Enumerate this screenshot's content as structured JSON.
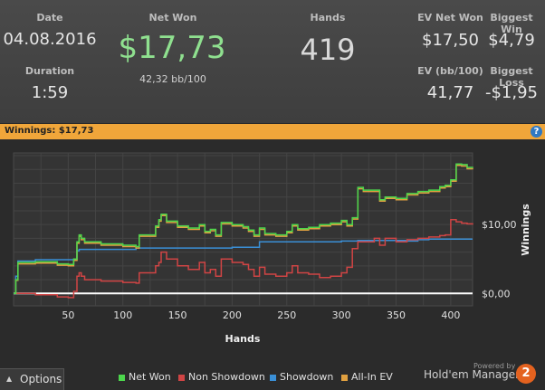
{
  "stats": {
    "date_label": "Date",
    "date_value": "04.08.2016",
    "duration_label": "Duration",
    "duration_value": "1:59",
    "netwon_label": "Net Won",
    "netwon_value": "$17,73",
    "netwon_sub": "42,32 bb/100",
    "hands_label": "Hands",
    "hands_value": "419",
    "evnet_label": "EV Net Won",
    "evnet_value": "$17,50",
    "evbb_label": "EV (bb/100)",
    "evbb_value": "41,77",
    "bigwin_label": "Biggest Win",
    "bigwin_value": "$4,79",
    "bigloss_label": "Biggest Loss",
    "bigloss_value": "-$1,95"
  },
  "banner": {
    "text": "Winnings: $17,73",
    "help_icon": "?"
  },
  "chart_data": {
    "type": "line",
    "xlabel": "Hands",
    "ylabel": "Winnings",
    "xlim": [
      0,
      420
    ],
    "ylim": [
      -1.8,
      20.4
    ],
    "x_ticks": [
      50,
      100,
      150,
      200,
      250,
      300,
      350,
      400
    ],
    "y_ticks": [
      {
        "value": 0,
        "label": "$0,00"
      },
      {
        "value": 10,
        "label": "$10,00"
      }
    ],
    "grid": true,
    "series": [
      {
        "name": "Net Won",
        "color": "#4cd64c",
        "x": [
          0,
          2,
          4,
          20,
          40,
          50,
          55,
          58,
          60,
          62,
          65,
          80,
          100,
          112,
          115,
          130,
          133,
          135,
          140,
          150,
          160,
          170,
          175,
          180,
          185,
          190,
          200,
          210,
          215,
          220,
          225,
          230,
          240,
          250,
          255,
          260,
          270,
          280,
          290,
          300,
          305,
          310,
          315,
          320,
          330,
          335,
          340,
          350,
          360,
          370,
          380,
          390,
          395,
          400,
          405,
          410,
          415,
          420
        ],
        "y": [
          0,
          2,
          4.5,
          4.6,
          4.3,
          4.2,
          5,
          7.5,
          8.5,
          8,
          7.5,
          7.2,
          7,
          6.8,
          8.5,
          9.8,
          10.7,
          11.5,
          10.5,
          9.8,
          9.5,
          10,
          9,
          9.3,
          8.5,
          10.3,
          10,
          9.7,
          9.2,
          8.5,
          9.5,
          8.7,
          8.5,
          9,
          10,
          9.4,
          9.6,
          10,
          10.2,
          10.6,
          10,
          11,
          15.4,
          15,
          15,
          13.6,
          14,
          13.8,
          14.5,
          14.8,
          15,
          15.5,
          15.7,
          16.5,
          18.8,
          18.7,
          18.3,
          18.2
        ]
      },
      {
        "name": "Non Showdown",
        "color": "#d04444",
        "x": [
          0,
          20,
          40,
          50,
          55,
          58,
          60,
          62,
          65,
          80,
          100,
          112,
          115,
          130,
          133,
          135,
          140,
          150,
          160,
          170,
          175,
          180,
          185,
          190,
          200,
          210,
          215,
          220,
          225,
          230,
          240,
          250,
          255,
          260,
          270,
          280,
          290,
          300,
          305,
          310,
          315,
          320,
          330,
          335,
          340,
          350,
          360,
          370,
          380,
          390,
          395,
          400,
          405,
          410,
          415,
          420
        ],
        "y": [
          0,
          -0.2,
          -0.5,
          -0.6,
          0.3,
          2.5,
          3,
          2.5,
          2,
          1.8,
          1.6,
          1.5,
          3,
          4,
          4.5,
          6,
          5,
          4,
          3.5,
          4.5,
          3,
          3.5,
          2.5,
          5,
          4.5,
          4.2,
          3.5,
          2.5,
          3.8,
          2.8,
          2.5,
          3,
          4,
          3,
          2.8,
          2.3,
          2.5,
          3,
          3.8,
          6.5,
          7.5,
          7.5,
          8,
          7,
          8,
          7.5,
          7.8,
          8,
          8.2,
          8.4,
          8.5,
          10.7,
          10.4,
          10.2,
          10.1,
          10
        ]
      },
      {
        "name": "Showdown",
        "color": "#3a8fd6",
        "x": [
          0,
          2,
          4,
          20,
          50,
          58,
          60,
          100,
          112,
          200,
          220,
          225,
          300,
          310,
          315,
          360,
          370,
          380,
          395,
          420
        ],
        "y": [
          0,
          2.5,
          4.7,
          4.9,
          4.9,
          6.2,
          6.4,
          6.4,
          6.6,
          6.7,
          6.7,
          7.5,
          7.6,
          7.6,
          7.7,
          7.6,
          7.8,
          7.9,
          7.9,
          7.9
        ]
      },
      {
        "name": "All-In EV",
        "color": "#e0a040",
        "x": [
          0,
          2,
          4,
          20,
          40,
          50,
          55,
          58,
          60,
          62,
          65,
          80,
          100,
          112,
          115,
          130,
          133,
          135,
          140,
          150,
          160,
          170,
          175,
          180,
          185,
          190,
          200,
          210,
          215,
          220,
          225,
          230,
          240,
          250,
          255,
          260,
          270,
          280,
          290,
          300,
          305,
          310,
          315,
          320,
          330,
          335,
          340,
          350,
          360,
          370,
          380,
          390,
          395,
          400,
          405,
          410,
          415,
          420
        ],
        "y": [
          0,
          1.9,
          4.3,
          4.4,
          4.1,
          4,
          4.8,
          7.3,
          8.3,
          7.8,
          7.3,
          7,
          6.8,
          6.6,
          8.3,
          9.6,
          10.5,
          11.3,
          10.3,
          9.6,
          9.3,
          9.8,
          8.8,
          9.1,
          8.3,
          10.1,
          9.8,
          9.5,
          9,
          8.3,
          9.3,
          8.5,
          8.3,
          8.8,
          9.8,
          9.2,
          9.4,
          9.8,
          10,
          10.4,
          9.8,
          10.8,
          15.2,
          14.8,
          14.8,
          13.4,
          13.8,
          13.6,
          14.3,
          14.6,
          14.8,
          15.3,
          15.5,
          16.3,
          18.6,
          18.5,
          18.1,
          18
        ]
      },
      {
        "name": "",
        "color": "#ffffff",
        "x": [
          0,
          420
        ],
        "y": [
          0,
          0
        ]
      }
    ],
    "legend": [
      "Net Won",
      "Non Showdown",
      "Showdown",
      "All-In EV"
    ],
    "legend_placement": "bottom"
  },
  "footer": {
    "options_label": "Options",
    "options_icon": "chevron-up",
    "powered_by": "Powered by",
    "brand": "Hold'em Manager",
    "brand_badge": "2"
  }
}
